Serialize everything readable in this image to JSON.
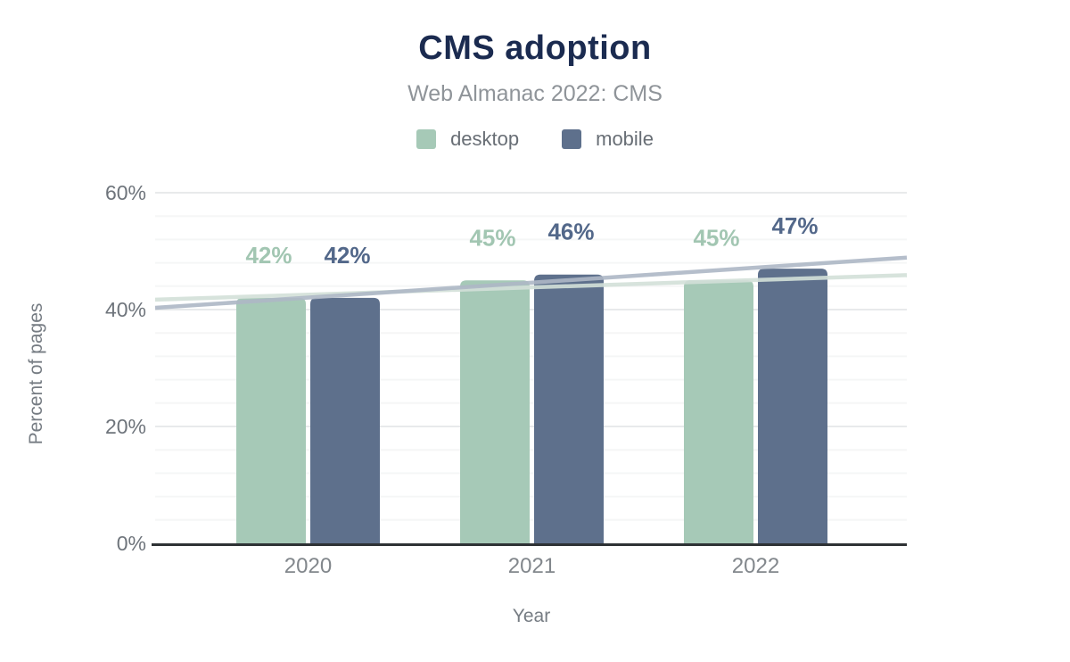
{
  "chart_data": {
    "type": "bar",
    "title": "CMS adoption",
    "subtitle": "Web Almanac 2022: CMS",
    "categories": [
      "2020",
      "2021",
      "2022"
    ],
    "series": [
      {
        "name": "desktop",
        "color": "#a6c9b7",
        "label_color": "#a2c6b2",
        "values": [
          42,
          45,
          45
        ],
        "data_labels": [
          "42%",
          "45%",
          "45%"
        ]
      },
      {
        "name": "mobile",
        "color": "#5e708c",
        "label_color": "#53688a",
        "values": [
          42,
          46,
          47
        ],
        "data_labels": [
          "42%",
          "46%",
          "47%"
        ]
      }
    ],
    "trendlines": [
      {
        "series": "desktop",
        "color": "#d3e0d9",
        "start_pct": 41.7,
        "end_pct": 45.9
      },
      {
        "series": "mobile",
        "color": "#aeb8c6",
        "start_pct": 40.3,
        "end_pct": 48.9
      }
    ],
    "xlabel": "Year",
    "ylabel": "Percent of pages",
    "ylim": [
      0,
      60
    ],
    "yticks": [
      {
        "value": 0,
        "label": "0%"
      },
      {
        "value": 20,
        "label": "20%"
      },
      {
        "value": 40,
        "label": "40%"
      },
      {
        "value": 60,
        "label": "60%"
      }
    ],
    "minor_grid_step_pct": 4,
    "grid": "horizontal",
    "legend_position": "top",
    "colors": {
      "title": "#1b2b50",
      "subtitle": "#8f9499",
      "axis_line": "#2e3235",
      "y_tick": "#6e747b",
      "x_tick": "#82878c",
      "axis_title": "#767c83",
      "major_grid": "#e8eaeb",
      "minor_grid": "#f5f6f6"
    }
  }
}
